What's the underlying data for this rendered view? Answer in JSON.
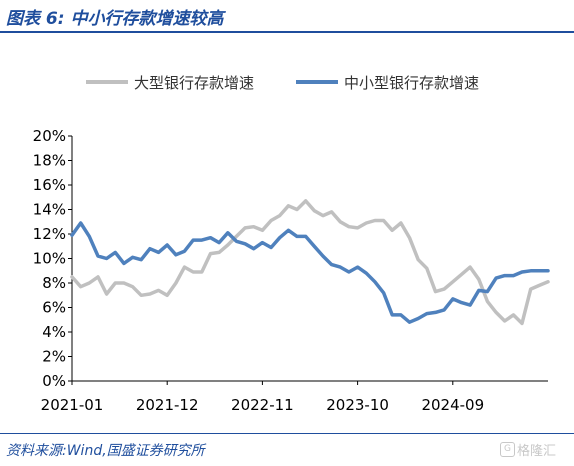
{
  "figure": {
    "title": "图表 6:  中小行存款增速较高",
    "source": "资料来源:Wind,国盛证券研究所",
    "watermark": "格隆汇",
    "watermark_icon": "gelonghui-logo-icon"
  },
  "chart_data": {
    "type": "line",
    "title": "",
    "xlabel": "",
    "ylabel": "",
    "x_tick_labels": [
      "2021-01",
      "2021-12",
      "2022-11",
      "2023-10",
      "2024-09"
    ],
    "y_tick_labels": [
      "0%",
      "2%",
      "4%",
      "6%",
      "8%",
      "10%",
      "12%",
      "14%",
      "16%",
      "18%",
      "20%"
    ],
    "ylim": [
      0,
      20
    ],
    "y_unit": "%",
    "grid": false,
    "legend_position": "top-center",
    "x_start": "2021-01",
    "series": [
      {
        "name": "大型银行存款增速",
        "color": "#c0c0c0",
        "values": [
          8.5,
          7.7,
          8.0,
          8.5,
          7.1,
          8.0,
          8.0,
          7.7,
          7.0,
          7.1,
          7.4,
          7.0,
          8.0,
          9.3,
          8.9,
          8.9,
          10.4,
          10.5,
          11.1,
          11.8,
          12.5,
          12.6,
          12.3,
          13.1,
          13.5,
          14.3,
          14.0,
          14.7,
          13.9,
          13.5,
          13.8,
          13.0,
          12.6,
          12.5,
          12.9,
          13.1,
          13.1,
          12.3,
          12.9,
          11.7,
          9.9,
          9.2,
          7.3,
          7.5,
          8.1,
          8.7,
          9.3,
          8.3,
          6.5,
          5.6,
          4.9,
          5.4,
          4.7,
          7.5,
          7.8,
          8.1
        ]
      },
      {
        "name": "中小型银行存款增速",
        "color": "#4f81bd",
        "values": [
          11.9,
          12.9,
          11.8,
          10.2,
          10.0,
          10.5,
          9.6,
          10.1,
          9.9,
          10.8,
          10.5,
          11.1,
          10.3,
          10.6,
          11.5,
          11.5,
          11.7,
          11.3,
          12.1,
          11.4,
          11.2,
          10.8,
          11.3,
          10.9,
          11.7,
          12.3,
          11.8,
          11.8,
          11.0,
          10.2,
          9.5,
          9.3,
          8.9,
          9.3,
          8.8,
          8.1,
          7.2,
          5.4,
          5.4,
          4.8,
          5.1,
          5.5,
          5.6,
          5.8,
          6.7,
          6.4,
          6.2,
          7.4,
          7.3,
          8.4,
          8.6,
          8.6,
          8.9,
          9.0,
          9.0,
          9.0
        ]
      }
    ]
  }
}
